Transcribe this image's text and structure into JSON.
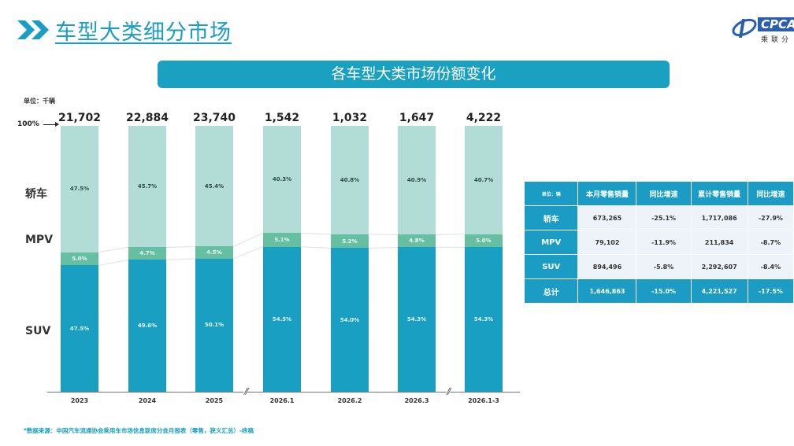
{
  "header": {
    "title": "车型大类细分市场",
    "chevron_icon": "double-chevron-right-icon"
  },
  "logo": {
    "brand": "CPCA",
    "sub": "乘联分"
  },
  "chart_title": "各车型大类市场份额变化",
  "unit_label": "单位：千辆",
  "pct100_label": "100%",
  "category_labels": {
    "sedan": "轿车",
    "mpv": "MPV",
    "suv": "SUV"
  },
  "chart_data": {
    "type": "bar",
    "stacked": true,
    "normalized": true,
    "title": "各车型大类市场份额变化",
    "unit": "千辆",
    "categories": [
      "2023",
      "2024",
      "2025",
      "2026.1",
      "2026.2",
      "2026.3",
      "2026.1-3"
    ],
    "totals": [
      "21,702",
      "22,884",
      "23,740",
      "1,542",
      "1,032",
      "1,647",
      "4,222"
    ],
    "series": [
      {
        "name": "SUV",
        "values": [
          47.5,
          49.6,
          50.1,
          54.5,
          54.0,
          54.3,
          54.3
        ],
        "labels": [
          "47.5%",
          "49.6%",
          "50.1%",
          "54.5%",
          "54.0%",
          "54.3%",
          "54.3%"
        ],
        "color": "#199fc2"
      },
      {
        "name": "MPV",
        "values": [
          5.0,
          4.7,
          4.5,
          5.1,
          5.2,
          4.8,
          5.0
        ],
        "labels": [
          "5.0%",
          "4.7%",
          "4.5%",
          "5.1%",
          "5.2%",
          "4.8%",
          "5.0%"
        ],
        "color": "#66bfa0"
      },
      {
        "name": "轿车",
        "values": [
          47.5,
          45.7,
          45.4,
          40.3,
          40.8,
          40.9,
          40.7
        ],
        "labels": [
          "47.5%",
          "45.7%",
          "45.4%",
          "40.3%",
          "40.8%",
          "40.9%",
          "40.7%"
        ],
        "color": "#b2ddd6"
      }
    ],
    "ylim": [
      0,
      100
    ],
    "axis_breaks_after": [
      "2025",
      "2026.3"
    ],
    "xlabel": "",
    "ylabel": "",
    "grid": false
  },
  "table": {
    "headers": [
      "单位：辆",
      "本月零售销量",
      "同比增速",
      "累计零售销量",
      "同比增速"
    ],
    "rows": [
      {
        "label": "轿车",
        "cells": [
          "673,265",
          "-25.1%",
          "1,717,086",
          "-27.9%"
        ]
      },
      {
        "label": "MPV",
        "cells": [
          "79,102",
          "-11.9%",
          "211,834",
          "-8.7%"
        ]
      },
      {
        "label": "SUV",
        "cells": [
          "894,496",
          "-5.8%",
          "2,292,607",
          "-8.4%"
        ]
      },
      {
        "label": "总计",
        "cells": [
          "1,646,863",
          "-15.0%",
          "4,221,527",
          "-17.5%"
        ]
      }
    ]
  },
  "footnote": "*数据来源：中国汽车流通协会乘用车市场信息联席分会月报表（零售，狭义汇总）-终稿"
}
